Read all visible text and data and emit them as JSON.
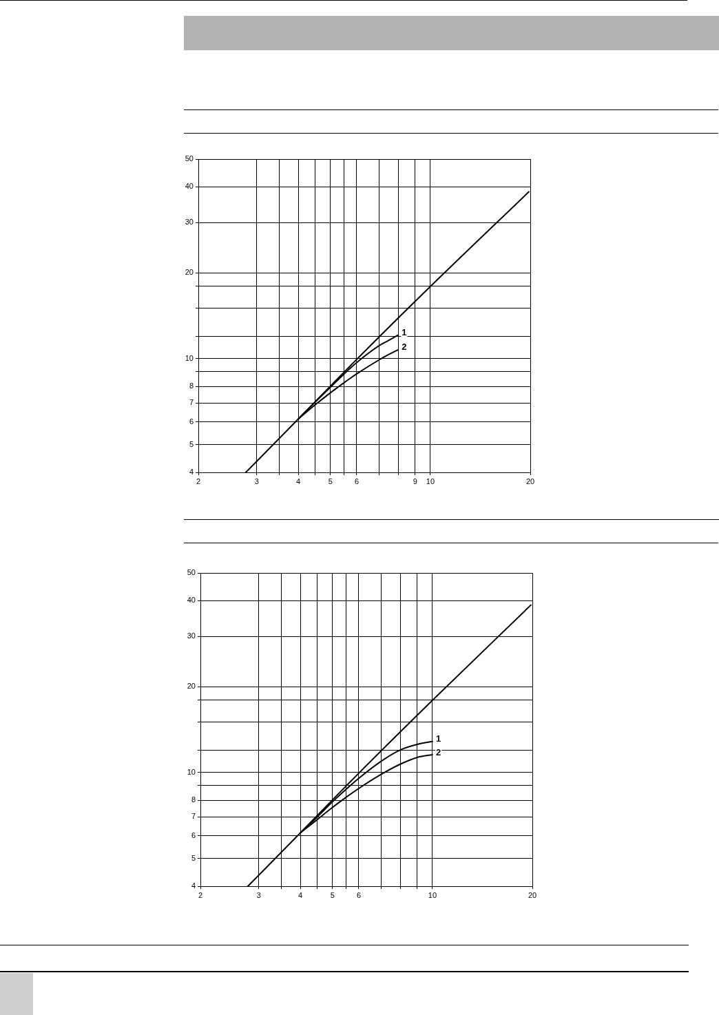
{
  "chart_data": [
    {
      "type": "line",
      "log": "xy",
      "grid": true,
      "marker": "none",
      "line_style": "solid",
      "xlim": [
        2,
        20
      ],
      "xticks": [
        2,
        3,
        {
          "value": 3.5,
          "label": null
        },
        4,
        {
          "value": 4.5,
          "label": null
        },
        5,
        {
          "value": 5.5,
          "label": null
        },
        6,
        {
          "value": 7,
          "label": null
        },
        {
          "value": 8,
          "label": null
        },
        9,
        10,
        20
      ],
      "ylim": [
        4,
        50
      ],
      "yticks": [
        4,
        5,
        6,
        7,
        8,
        {
          "value": 9,
          "label": null
        },
        10,
        {
          "value": 12,
          "label": null
        },
        {
          "value": 15,
          "label": null
        },
        {
          "value": 18,
          "label": null
        },
        20,
        30,
        40,
        50
      ],
      "series": [
        {
          "color": "#000000",
          "x": [
            2.78,
            4,
            6,
            10,
            19.8
          ],
          "values": [
            4,
            6.15,
            9.95,
            17.9,
            38.4
          ]
        },
        {
          "name": "1",
          "color": "#000000",
          "x": [
            4,
            4.5,
            5,
            5.5,
            6,
            7,
            7.5,
            8
          ],
          "values": [
            6.15,
            7.05,
            7.95,
            8.85,
            9.7,
            11.1,
            11.6,
            12.1
          ]
        },
        {
          "name": "2",
          "color": "#000000",
          "x": [
            4,
            4.5,
            5,
            5.5,
            6,
            7,
            7.5,
            8
          ],
          "values": [
            6.15,
            6.9,
            7.6,
            8.25,
            8.85,
            9.9,
            10.35,
            10.75
          ]
        }
      ]
    },
    {
      "type": "line",
      "log": "xy",
      "grid": true,
      "marker": "none",
      "line_style": "solid",
      "xlim": [
        2,
        20
      ],
      "xticks": [
        2,
        3,
        {
          "value": 3.5,
          "label": null
        },
        4,
        {
          "value": 4.5,
          "label": null
        },
        5,
        {
          "value": 5.5,
          "label": null
        },
        6,
        {
          "value": 7,
          "label": null
        },
        {
          "value": 8,
          "label": null
        },
        {
          "value": 9,
          "label": null
        },
        10,
        20
      ],
      "ylim": [
        4,
        50
      ],
      "yticks": [
        4,
        5,
        6,
        7,
        8,
        {
          "value": 9,
          "label": null
        },
        10,
        {
          "value": 12,
          "label": null
        },
        {
          "value": 15,
          "label": null
        },
        {
          "value": 18,
          "label": null
        },
        20,
        30,
        40,
        50
      ],
      "series": [
        {
          "color": "#000000",
          "x": [
            2.78,
            4,
            6,
            10,
            19.8
          ],
          "values": [
            4,
            6.15,
            9.95,
            17.9,
            38.6
          ]
        },
        {
          "name": "1",
          "color": "#000000",
          "x": [
            4,
            4.5,
            5,
            5.5,
            6,
            7,
            8,
            9,
            10
          ],
          "values": [
            6.15,
            7,
            7.9,
            8.75,
            9.55,
            10.95,
            12,
            12.55,
            12.85
          ]
        },
        {
          "name": "2",
          "color": "#000000",
          "x": [
            4,
            4.5,
            5,
            5.5,
            6,
            7,
            8,
            9,
            10
          ],
          "values": [
            6.15,
            6.85,
            7.55,
            8.2,
            8.8,
            9.85,
            10.7,
            11.3,
            11.55
          ]
        }
      ]
    }
  ]
}
